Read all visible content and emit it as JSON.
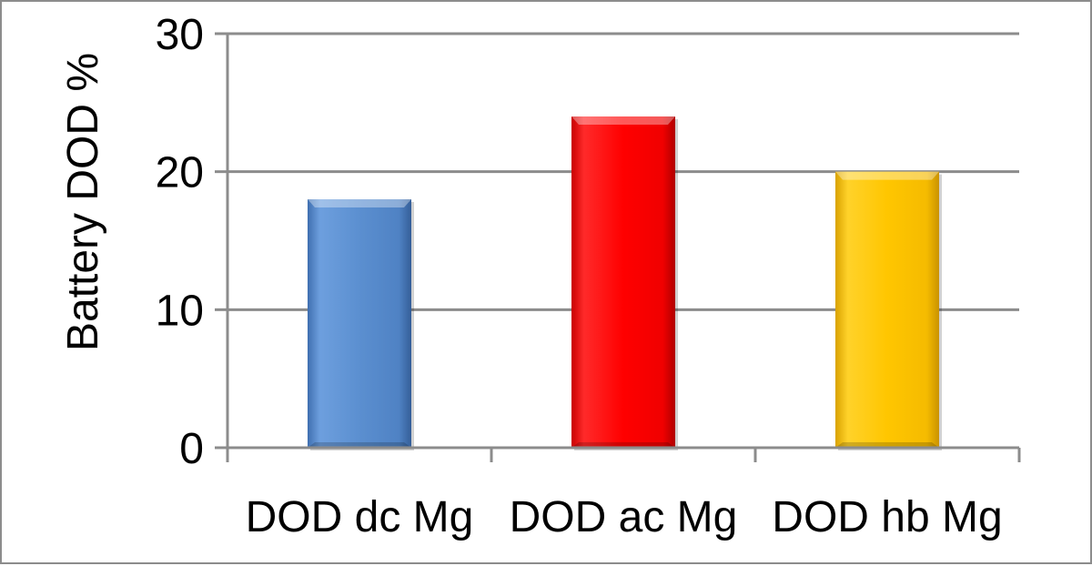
{
  "chart_data": {
    "type": "bar",
    "title": "",
    "xlabel": "",
    "ylabel": "Battery DOD %",
    "categories": [
      "DOD dc Mg",
      "DOD ac Mg",
      "DOD hb Mg"
    ],
    "values": [
      18,
      24,
      20
    ],
    "colors": [
      "#5b8fd0",
      "#ff0000",
      "#ffc600"
    ],
    "ylim": [
      0,
      30
    ],
    "yticks": [
      "0",
      "10",
      "20",
      "30"
    ],
    "grid": true,
    "legend": "none"
  }
}
